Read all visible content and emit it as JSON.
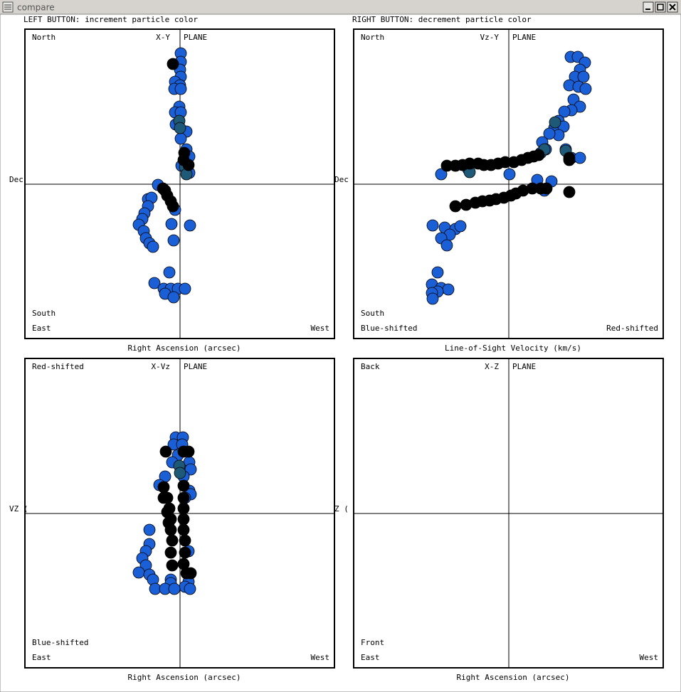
{
  "window": {
    "title": "compare"
  },
  "instructions": [
    "LEFT BUTTON: increment particle color",
    "RIGHT BUTTON: decrement particle color"
  ],
  "panels": [
    {
      "top_left": "North",
      "plane": "X-Y",
      "plane_word": "PLANE",
      "lower_left": "South",
      "bottom_left": "East",
      "bottom_right": "West",
      "y_label": "Dec",
      "x_label": "Right Ascension (arcsec)"
    },
    {
      "top_left": "North",
      "plane": "Vz-Y",
      "plane_word": "PLANE",
      "lower_left": "South",
      "bottom_left": "Blue-shifted",
      "bottom_right": "Red-shifted",
      "y_label": "Dec",
      "x_label": "Line-of-Sight Velocity (km/s)"
    },
    {
      "top_left": "Red-shifted",
      "plane": "X-Vz",
      "plane_word": "PLANE",
      "lower_left": "Blue-shifted",
      "bottom_left": "East",
      "bottom_right": "West",
      "y_label": "VZ (",
      "x_label": "Right Ascension (arcsec)"
    },
    {
      "top_left": "Back",
      "plane": "X-Z",
      "plane_word": "PLANE",
      "lower_left": "Front",
      "bottom_left": "East",
      "bottom_right": "West",
      "y_label": "Z (",
      "x_label": "Right Ascension (arcsec)"
    }
  ]
}
